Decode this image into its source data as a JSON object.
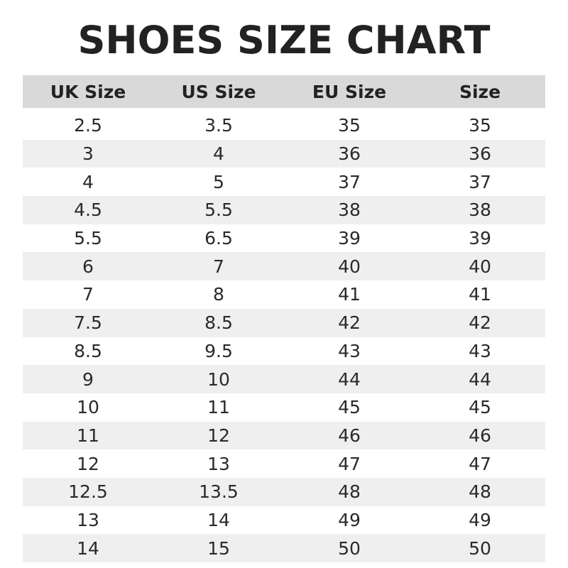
{
  "title": "SHOES SIZE CHART",
  "headers": [
    "UK Size",
    "US Size",
    "EU Size",
    "Size"
  ],
  "rows": [
    [
      "2.5",
      "3.5",
      "35",
      "35"
    ],
    [
      "3",
      "4",
      "36",
      "36"
    ],
    [
      "4",
      "5",
      "37",
      "37"
    ],
    [
      "4.5",
      "5.5",
      "38",
      "38"
    ],
    [
      "5.5",
      "6.5",
      "39",
      "39"
    ],
    [
      "6",
      "7",
      "40",
      "40"
    ],
    [
      "7",
      "8",
      "41",
      "41"
    ],
    [
      "7.5",
      "8.5",
      "42",
      "42"
    ],
    [
      "8.5",
      "9.5",
      "43",
      "43"
    ],
    [
      "9",
      "10",
      "44",
      "44"
    ],
    [
      "10",
      "11",
      "45",
      "45"
    ],
    [
      "11",
      "12",
      "46",
      "46"
    ],
    [
      "12",
      "13",
      "47",
      "47"
    ],
    [
      "12.5",
      "13.5",
      "48",
      "48"
    ],
    [
      "13",
      "14",
      "49",
      "49"
    ],
    [
      "14",
      "15",
      "50",
      "50"
    ]
  ],
  "colors": {
    "header_bg": "#d9d9d9",
    "stripe_bg": "#efefef",
    "text": "#222222"
  }
}
